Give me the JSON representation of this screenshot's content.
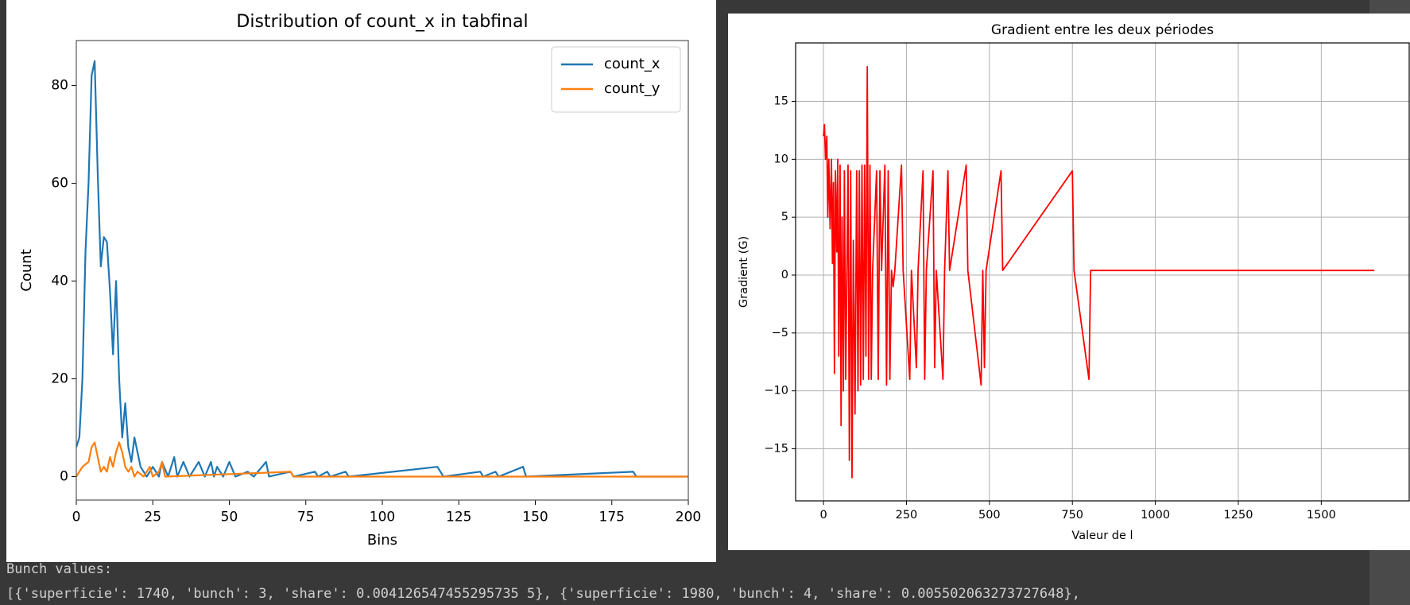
{
  "chart_data": [
    {
      "type": "line",
      "title": "Distribution of count_x in tabfinal",
      "xlabel": "Bins",
      "ylabel": "Count",
      "xlim": [
        0,
        200
      ],
      "ylim": [
        -4.8,
        89.2
      ],
      "xticks": [
        0,
        25,
        50,
        75,
        100,
        125,
        150,
        175,
        200
      ],
      "yticks": [
        0,
        20,
        40,
        60,
        80
      ],
      "grid": false,
      "legend": "upper right",
      "series": [
        {
          "name": "count_x",
          "color": "#1f77b4",
          "x": [
            0,
            1,
            2,
            3,
            4,
            5,
            6,
            7,
            8,
            9,
            10,
            11,
            12,
            13,
            14,
            15,
            16,
            17,
            18,
            19,
            20,
            21,
            22,
            23,
            25,
            27,
            28,
            30,
            32,
            33,
            35,
            37,
            40,
            42,
            44,
            45,
            46,
            48,
            50,
            52,
            56,
            58,
            62,
            63,
            70,
            71,
            78,
            79,
            82,
            83,
            88,
            89,
            118,
            120,
            132,
            133,
            137,
            138,
            146,
            147,
            182,
            183,
            200
          ],
          "values": [
            6,
            8,
            20,
            46,
            60,
            82,
            85,
            62,
            43,
            49,
            48,
            38,
            25,
            40,
            20,
            8,
            15,
            6,
            3,
            8,
            5,
            2,
            1,
            0,
            2,
            0,
            3,
            0,
            4,
            0,
            3,
            0,
            3,
            0,
            3,
            0,
            2,
            0,
            3,
            0,
            1,
            0,
            3,
            0,
            1,
            0,
            1,
            0,
            1,
            0,
            1,
            0,
            2,
            0,
            1,
            0,
            1,
            0,
            2,
            0,
            1,
            0,
            0
          ]
        },
        {
          "name": "count_y",
          "color": "#ff7f0e",
          "x": [
            0,
            2,
            4,
            5,
            6,
            7,
            8,
            9,
            10,
            11,
            12,
            13,
            14,
            15,
            16,
            17,
            18,
            19,
            20,
            22,
            24,
            25,
            27,
            28,
            29,
            70,
            71,
            200
          ],
          "values": [
            0,
            2,
            3,
            6,
            7,
            4,
            1,
            2,
            1,
            4,
            2,
            5,
            7,
            5,
            2,
            1,
            2,
            0,
            1,
            0,
            2,
            0,
            1,
            3,
            0,
            1,
            0,
            0
          ]
        }
      ]
    },
    {
      "type": "line",
      "title": "Gradient entre les deux périodes",
      "xlabel": "Valeur de l",
      "ylabel": "Gradient (G)",
      "xlim": [
        -84,
        1765
      ],
      "ylim": [
        -19.5,
        20.05
      ],
      "xticks": [
        0,
        250,
        500,
        750,
        1000,
        1250,
        1500
      ],
      "yticks": [
        {
          "value": -15,
          "label": "−15"
        },
        {
          "value": -10,
          "label": "−10"
        },
        {
          "value": -5,
          "label": "−5"
        },
        0,
        5,
        10,
        15
      ],
      "grid": true,
      "series": [
        {
          "color": "#ff0000",
          "x": [
            0,
            3,
            6,
            10,
            13,
            16,
            20,
            24,
            27,
            30,
            33,
            36,
            40,
            43,
            46,
            50,
            53,
            56,
            60,
            63,
            67,
            70,
            74,
            78,
            82,
            86,
            90,
            95,
            100,
            104,
            108,
            112,
            116,
            120,
            124,
            128,
            132,
            136,
            140,
            144,
            148,
            160,
            165,
            170,
            175,
            185,
            190,
            195,
            200,
            205,
            210,
            215,
            235,
            240,
            260,
            265,
            280,
            285,
            300,
            305,
            310,
            330,
            335,
            340,
            360,
            365,
            375,
            380,
            430,
            435,
            475,
            480,
            485,
            490,
            535,
            540,
            750,
            755,
            800,
            805,
            1660
          ],
          "values": [
            12,
            13,
            10,
            12,
            5,
            10,
            4,
            10,
            1,
            8,
            -8.5,
            9,
            2,
            10,
            -7,
            9.5,
            -13,
            5,
            -10,
            9,
            -9,
            -1,
            9.5,
            -16,
            9,
            -17.5,
            3,
            -12,
            9,
            -10,
            9,
            -9.5,
            9.5,
            -9,
            9.5,
            -7,
            18,
            -9,
            9.5,
            -9,
            0.4,
            9,
            -9,
            9,
            0.4,
            9.5,
            -9.5,
            9,
            -9,
            0.4,
            -1,
            0.4,
            9.5,
            0.4,
            -9,
            0.4,
            -8,
            0.4,
            9,
            -9,
            0.4,
            9,
            -8,
            0.4,
            -9,
            0.4,
            9,
            0.4,
            9.5,
            0.4,
            -9.5,
            0.4,
            -8,
            0.4,
            9,
            0.4,
            9,
            0.4,
            -9,
            0.4,
            0.4
          ]
        }
      ]
    }
  ],
  "output": {
    "heading": "Bunch values:",
    "line": "[{'superficie': 1740, 'bunch': 3, 'share': 0.004126547455295735 5}, {'superficie': 1980, 'bunch': 4, 'share': 0.005502063273727648},"
  }
}
